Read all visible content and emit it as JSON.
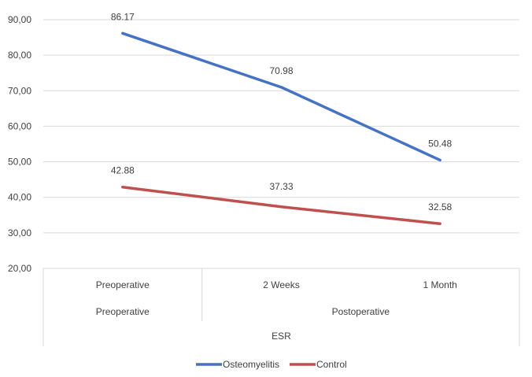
{
  "chart_data": {
    "type": "line",
    "categories": [
      "Preoperative",
      "2 Weeks",
      "1 Month"
    ],
    "category_groups": [
      {
        "label": "Preoperative",
        "span": 1
      },
      {
        "label": "Postoperative",
        "span": 2
      }
    ],
    "category_super_label": "ESR",
    "series": [
      {
        "name": "Osteomyelitis",
        "color": "#4472c4",
        "values": [
          86.17,
          70.98,
          50.48
        ],
        "labels": [
          "86.17",
          "70.98",
          "50.48"
        ]
      },
      {
        "name": "Control",
        "color": "#c0504d",
        "values": [
          42.88,
          37.33,
          32.58
        ],
        "labels": [
          "42.88",
          "37.33",
          "32.58"
        ]
      }
    ],
    "yticks": [
      "20,00",
      "30,00",
      "40,00",
      "50,00",
      "60,00",
      "70,00",
      "80,00",
      "90,00"
    ],
    "ylim": [
      20,
      90
    ],
    "grid": true,
    "legend_position": "bottom"
  }
}
